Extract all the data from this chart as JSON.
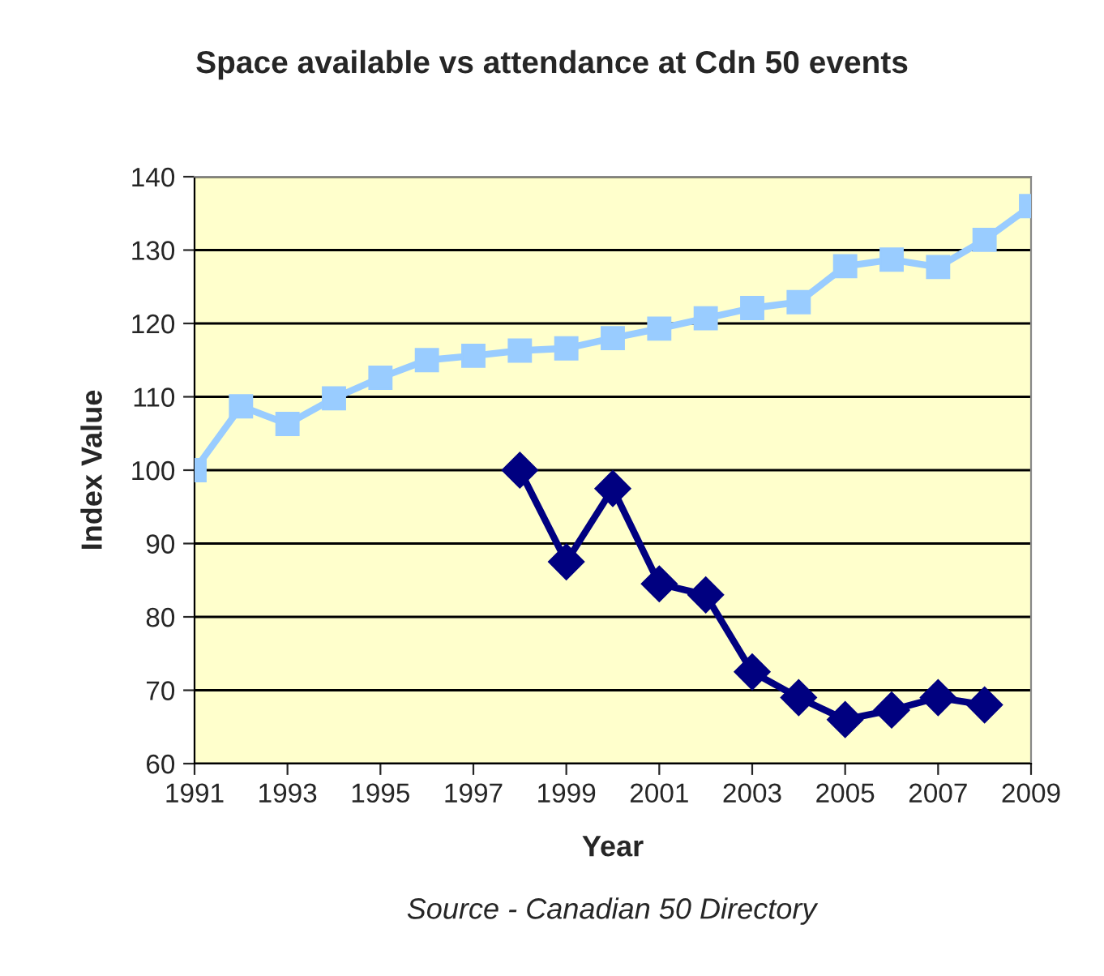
{
  "chart_data": {
    "type": "line",
    "title": "Space available vs attendance at Cdn 50 events",
    "xlabel": "Year",
    "ylabel": "Index Value",
    "annotations": [
      "Source - Canadian 50 Directory"
    ],
    "series": [
      {
        "color": "#99ccff",
        "marker": "square",
        "x": [
          1991,
          1992,
          1993,
          1994,
          1995,
          1996,
          1997,
          1998,
          1999,
          2000,
          2001,
          2002,
          2003,
          2004,
          2005,
          2006,
          2007,
          2008,
          2009
        ],
        "values": [
          100,
          108.7,
          106.3,
          109.8,
          112.6,
          115,
          115.6,
          116.3,
          116.6,
          118,
          119.3,
          120.7,
          122.1,
          122.9,
          127.8,
          128.7,
          127.7,
          131.4,
          136
        ]
      },
      {
        "color": "#000080",
        "marker": "diamond",
        "x": [
          1998,
          1999,
          2000,
          2001,
          2002,
          2003,
          2004,
          2005,
          2006,
          2007,
          2008
        ],
        "values": [
          100,
          87.5,
          97.5,
          84.5,
          83,
          72.5,
          69,
          66,
          67.3,
          69,
          68
        ]
      }
    ],
    "xlim": [
      1991,
      2009
    ],
    "xticks": [
      1991,
      1993,
      1995,
      1997,
      1999,
      2001,
      2003,
      2005,
      2007,
      2009
    ],
    "ylim": [
      60,
      140
    ],
    "yticks": [
      60,
      70,
      80,
      90,
      100,
      110,
      120,
      130,
      140
    ],
    "grid": "y",
    "line_style": "solid"
  }
}
